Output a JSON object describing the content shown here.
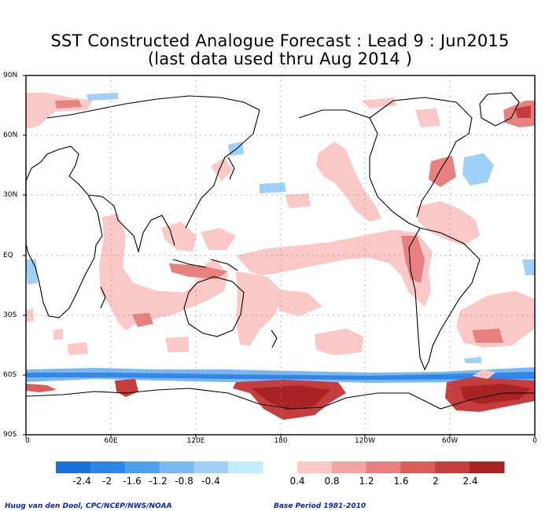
{
  "title_line1": "SST Constructed Analogue Forecast : Lead 9 : Jun2015",
  "title_line2": "(last data used thru Aug 2014 )",
  "lat_labels": [
    "90N",
    "60N",
    "30N",
    "EQ",
    "30S",
    "60S",
    "90S"
  ],
  "lon_labels": [
    "0",
    "60E",
    "120E",
    "180",
    "120W",
    "60W",
    "0"
  ],
  "colorbar": {
    "labels": [
      "-2.4",
      "-2",
      "-1.6",
      "-1.2",
      "-0.8",
      "-0.4",
      "0.4",
      "0.8",
      "1.2",
      "1.6",
      "2",
      "2.4"
    ],
    "negative_colors": [
      "#1e6fd9",
      "#2f86e8",
      "#4f9ff0",
      "#79b8f5",
      "#9fd0f8",
      "#c5ecfc"
    ],
    "positive_colors": [
      "#fbc8c8",
      "#f4a3a3",
      "#e88080",
      "#da5d5d",
      "#c63d3d",
      "#a82424"
    ]
  },
  "credit_left": "Huug van den Dool, CPC/NCEP/NWS/NOAA",
  "credit_right": "Base Period 1981-2010"
}
